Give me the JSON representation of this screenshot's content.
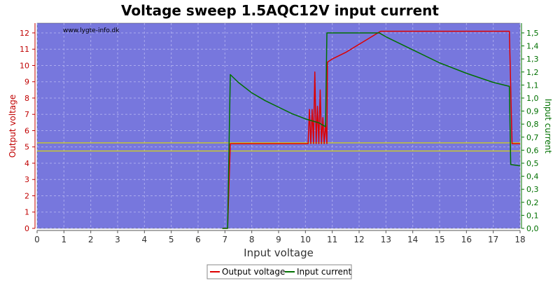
{
  "chart_data": {
    "type": "line",
    "title": "Voltage sweep 1.5AQC12V input current",
    "watermark": "www.lygte-info.dk",
    "xlabel": "Input voltage",
    "ylabel_left": "Output voltage",
    "ylabel_right": "Input current",
    "xlim": [
      0,
      18
    ],
    "ylim_left": [
      0,
      12.6
    ],
    "ylim_right": [
      0,
      1.575
    ],
    "x_ticks": [
      "0",
      "1",
      "2",
      "3",
      "4",
      "5",
      "6",
      "7",
      "8",
      "9",
      "10",
      "11",
      "12",
      "13",
      "14",
      "15",
      "16",
      "17",
      "18"
    ],
    "y_left_ticks": [
      "0",
      "1",
      "2",
      "3",
      "4",
      "5",
      "6",
      "7",
      "8",
      "9",
      "10",
      "11",
      "12"
    ],
    "y_right_ticks": [
      "0,0",
      "0,1",
      "0,2",
      "0,3",
      "0,4",
      "0,5",
      "0,6",
      "0,7",
      "0,8",
      "0,9",
      "1,0",
      "1,1",
      "1,2",
      "1,3",
      "1,4",
      "1,5"
    ],
    "grid": true,
    "legend_position": "bottom-center",
    "colors": {
      "plot_bg": "#7777dd",
      "grid": "#aaaaee",
      "output_voltage": "#dd0000",
      "input_current": "#007000",
      "reference_line": "#dddd00",
      "left_axis": "#c00000",
      "right_axis": "#007000"
    },
    "reference_lines_left_axis": [
      4.75,
      5.25
    ],
    "series": [
      {
        "name": "Output voltage",
        "axis": "left",
        "points": [
          [
            6.9,
            0.0
          ],
          [
            7.1,
            0.0
          ],
          [
            7.2,
            5.2
          ],
          [
            7.5,
            5.2
          ],
          [
            9.0,
            5.2
          ],
          [
            10.1,
            5.2
          ],
          [
            10.15,
            7.3
          ],
          [
            10.2,
            5.2
          ],
          [
            10.25,
            7.3
          ],
          [
            10.3,
            5.2
          ],
          [
            10.35,
            9.6
          ],
          [
            10.4,
            5.2
          ],
          [
            10.45,
            7.5
          ],
          [
            10.5,
            5.2
          ],
          [
            10.55,
            8.5
          ],
          [
            10.6,
            5.2
          ],
          [
            10.65,
            6.8
          ],
          [
            10.7,
            5.2
          ],
          [
            10.75,
            6.5
          ],
          [
            10.8,
            5.2
          ],
          [
            10.82,
            10.2
          ],
          [
            11.0,
            10.4
          ],
          [
            11.5,
            10.8
          ],
          [
            12.0,
            11.3
          ],
          [
            12.5,
            11.8
          ],
          [
            12.8,
            12.1
          ],
          [
            13.5,
            12.1
          ],
          [
            15.0,
            12.1
          ],
          [
            16.5,
            12.1
          ],
          [
            17.6,
            12.1
          ],
          [
            17.7,
            5.2
          ],
          [
            18.0,
            5.2
          ]
        ]
      },
      {
        "name": "Input current",
        "axis": "right",
        "points": [
          [
            6.9,
            0.0
          ],
          [
            7.1,
            0.0
          ],
          [
            7.2,
            1.18
          ],
          [
            7.5,
            1.12
          ],
          [
            8.0,
            1.04
          ],
          [
            8.5,
            0.98
          ],
          [
            9.0,
            0.93
          ],
          [
            9.5,
            0.88
          ],
          [
            10.0,
            0.84
          ],
          [
            10.5,
            0.81
          ],
          [
            10.75,
            0.78
          ],
          [
            10.8,
            1.5
          ],
          [
            11.0,
            1.5
          ],
          [
            12.0,
            1.5
          ],
          [
            12.75,
            1.5
          ],
          [
            13.0,
            1.47
          ],
          [
            14.0,
            1.37
          ],
          [
            15.0,
            1.27
          ],
          [
            16.0,
            1.19
          ],
          [
            17.0,
            1.12
          ],
          [
            17.6,
            1.09
          ],
          [
            17.65,
            0.49
          ],
          [
            18.0,
            0.48
          ]
        ]
      }
    ]
  }
}
